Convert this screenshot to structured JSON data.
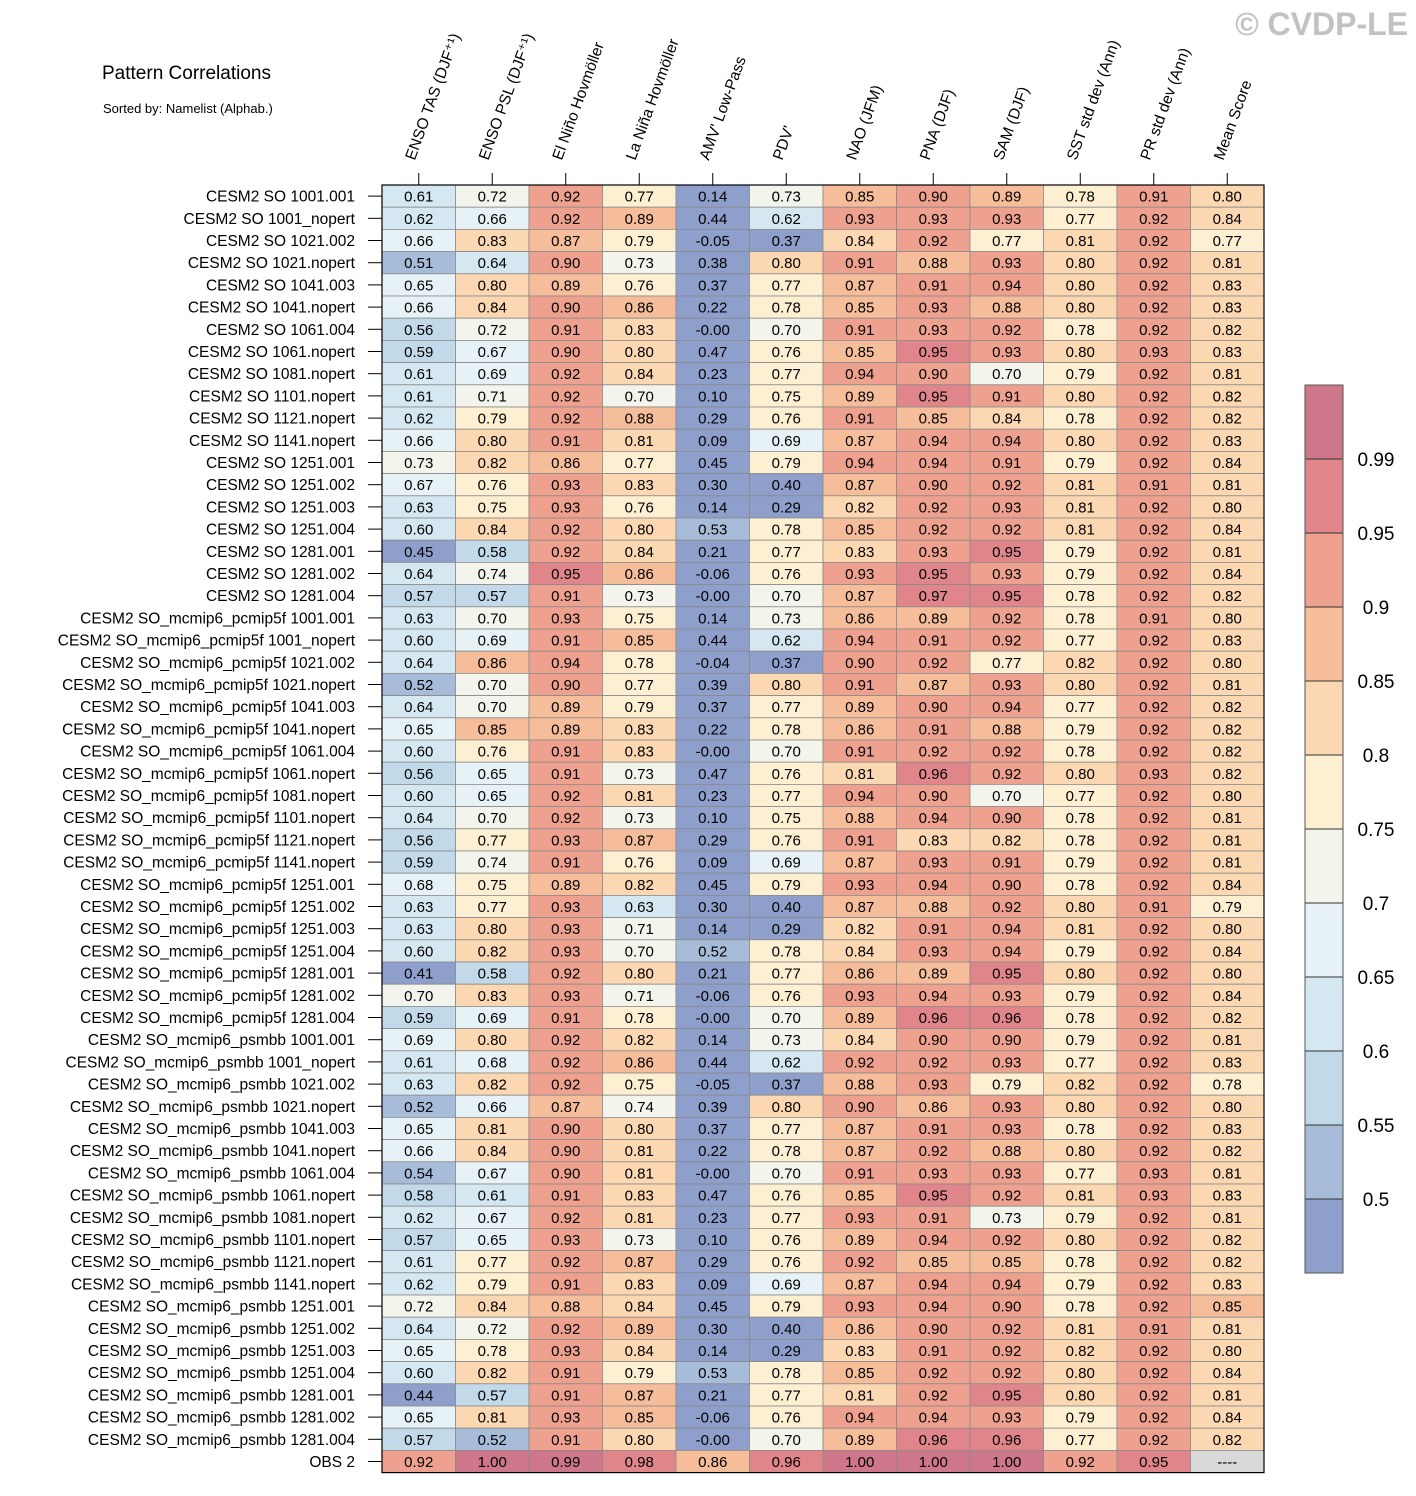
{
  "watermark": "© CVDP-LE",
  "chart_data": {
    "type": "heatmap",
    "title": "Pattern Correlations",
    "subtitle": "Sorted by: Namelist (Alphab.)",
    "columns": [
      "ENSO TAS (DJF⁺¹)",
      "ENSO PSL (DJF⁺¹)",
      "El Niño Hovmöller",
      "La Niña Hovmöller",
      "AMV' Low-Pass",
      "PDV'",
      "NAO (JFM)",
      "PNA (DJF)",
      "SAM (DJF)",
      "SST std dev (Ann)",
      "PR std dev (Ann)",
      "Mean Score"
    ],
    "rows": [
      "CESM2 SO 1001.001",
      "CESM2 SO 1001_nopert",
      "CESM2 SO 1021.002",
      "CESM2 SO 1021.nopert",
      "CESM2 SO 1041.003",
      "CESM2 SO 1041.nopert",
      "CESM2 SO 1061.004",
      "CESM2 SO 1061.nopert",
      "CESM2 SO 1081.nopert",
      "CESM2 SO 1101.nopert",
      "CESM2 SO 1121.nopert",
      "CESM2 SO 1141.nopert",
      "CESM2 SO 1251.001",
      "CESM2 SO 1251.002",
      "CESM2 SO 1251.003",
      "CESM2 SO 1251.004",
      "CESM2 SO 1281.001",
      "CESM2 SO 1281.002",
      "CESM2 SO 1281.004",
      "CESM2 SO_mcmip6_pcmip5f 1001.001",
      "CESM2 SO_mcmip6_pcmip5f 1001_nopert",
      "CESM2 SO_mcmip6_pcmip5f 1021.002",
      "CESM2 SO_mcmip6_pcmip5f 1021.nopert",
      "CESM2 SO_mcmip6_pcmip5f 1041.003",
      "CESM2 SO_mcmip6_pcmip5f 1041.nopert",
      "CESM2 SO_mcmip6_pcmip5f 1061.004",
      "CESM2 SO_mcmip6_pcmip5f 1061.nopert",
      "CESM2 SO_mcmip6_pcmip5f 1081.nopert",
      "CESM2 SO_mcmip6_pcmip5f 1101.nopert",
      "CESM2 SO_mcmip6_pcmip5f 1121.nopert",
      "CESM2 SO_mcmip6_pcmip5f 1141.nopert",
      "CESM2 SO_mcmip6_pcmip5f 1251.001",
      "CESM2 SO_mcmip6_pcmip5f 1251.002",
      "CESM2 SO_mcmip6_pcmip5f 1251.003",
      "CESM2 SO_mcmip6_pcmip5f 1251.004",
      "CESM2 SO_mcmip6_pcmip5f 1281.001",
      "CESM2 SO_mcmip6_pcmip5f 1281.002",
      "CESM2 SO_mcmip6_pcmip5f 1281.004",
      "CESM2 SO_mcmip6_psmbb 1001.001",
      "CESM2 SO_mcmip6_psmbb 1001_nopert",
      "CESM2 SO_mcmip6_psmbb 1021.002",
      "CESM2 SO_mcmip6_psmbb 1021.nopert",
      "CESM2 SO_mcmip6_psmbb 1041.003",
      "CESM2 SO_mcmip6_psmbb 1041.nopert",
      "CESM2 SO_mcmip6_psmbb 1061.004",
      "CESM2 SO_mcmip6_psmbb 1061.nopert",
      "CESM2 SO_mcmip6_psmbb 1081.nopert",
      "CESM2 SO_mcmip6_psmbb 1101.nopert",
      "CESM2 SO_mcmip6_psmbb 1121.nopert",
      "CESM2 SO_mcmip6_psmbb 1141.nopert",
      "CESM2 SO_mcmip6_psmbb 1251.001",
      "CESM2 SO_mcmip6_psmbb 1251.002",
      "CESM2 SO_mcmip6_psmbb 1251.003",
      "CESM2 SO_mcmip6_psmbb 1251.004",
      "CESM2 SO_mcmip6_psmbb 1281.001",
      "CESM2 SO_mcmip6_psmbb 1281.002",
      "CESM2 SO_mcmip6_psmbb 1281.004",
      "OBS 2"
    ],
    "values": [
      [
        "0.61",
        "0.72",
        "0.92",
        "0.77",
        "0.14",
        "0.73",
        "0.85",
        "0.90",
        "0.89",
        "0.78",
        "0.91",
        "0.80"
      ],
      [
        "0.62",
        "0.66",
        "0.92",
        "0.89",
        "0.44",
        "0.62",
        "0.93",
        "0.93",
        "0.93",
        "0.77",
        "0.92",
        "0.84"
      ],
      [
        "0.66",
        "0.83",
        "0.87",
        "0.79",
        "-0.05",
        "0.37",
        "0.84",
        "0.92",
        "0.77",
        "0.81",
        "0.92",
        "0.77"
      ],
      [
        "0.51",
        "0.64",
        "0.90",
        "0.73",
        "0.38",
        "0.80",
        "0.91",
        "0.88",
        "0.93",
        "0.80",
        "0.92",
        "0.81"
      ],
      [
        "0.65",
        "0.80",
        "0.89",
        "0.76",
        "0.37",
        "0.77",
        "0.87",
        "0.91",
        "0.94",
        "0.80",
        "0.92",
        "0.83"
      ],
      [
        "0.66",
        "0.84",
        "0.90",
        "0.86",
        "0.22",
        "0.78",
        "0.85",
        "0.93",
        "0.88",
        "0.80",
        "0.92",
        "0.83"
      ],
      [
        "0.56",
        "0.72",
        "0.91",
        "0.83",
        "-0.00",
        "0.70",
        "0.91",
        "0.93",
        "0.92",
        "0.78",
        "0.92",
        "0.82"
      ],
      [
        "0.59",
        "0.67",
        "0.90",
        "0.80",
        "0.47",
        "0.76",
        "0.85",
        "0.95",
        "0.93",
        "0.80",
        "0.93",
        "0.83"
      ],
      [
        "0.61",
        "0.69",
        "0.92",
        "0.84",
        "0.23",
        "0.77",
        "0.94",
        "0.90",
        "0.70",
        "0.79",
        "0.92",
        "0.81"
      ],
      [
        "0.61",
        "0.71",
        "0.92",
        "0.70",
        "0.10",
        "0.75",
        "0.89",
        "0.95",
        "0.91",
        "0.80",
        "0.92",
        "0.82"
      ],
      [
        "0.62",
        "0.79",
        "0.92",
        "0.88",
        "0.29",
        "0.76",
        "0.91",
        "0.85",
        "0.84",
        "0.78",
        "0.92",
        "0.82"
      ],
      [
        "0.66",
        "0.80",
        "0.91",
        "0.81",
        "0.09",
        "0.69",
        "0.87",
        "0.94",
        "0.94",
        "0.80",
        "0.92",
        "0.83"
      ],
      [
        "0.73",
        "0.82",
        "0.86",
        "0.77",
        "0.45",
        "0.79",
        "0.94",
        "0.94",
        "0.91",
        "0.79",
        "0.92",
        "0.84"
      ],
      [
        "0.67",
        "0.76",
        "0.93",
        "0.83",
        "0.30",
        "0.40",
        "0.87",
        "0.90",
        "0.92",
        "0.81",
        "0.91",
        "0.81"
      ],
      [
        "0.63",
        "0.75",
        "0.93",
        "0.76",
        "0.14",
        "0.29",
        "0.82",
        "0.92",
        "0.93",
        "0.81",
        "0.92",
        "0.80"
      ],
      [
        "0.60",
        "0.84",
        "0.92",
        "0.80",
        "0.53",
        "0.78",
        "0.85",
        "0.92",
        "0.92",
        "0.81",
        "0.92",
        "0.84"
      ],
      [
        "0.45",
        "0.58",
        "0.92",
        "0.84",
        "0.21",
        "0.77",
        "0.83",
        "0.93",
        "0.95",
        "0.79",
        "0.92",
        "0.81"
      ],
      [
        "0.64",
        "0.74",
        "0.95",
        "0.86",
        "-0.06",
        "0.76",
        "0.93",
        "0.95",
        "0.93",
        "0.79",
        "0.92",
        "0.84"
      ],
      [
        "0.57",
        "0.57",
        "0.91",
        "0.73",
        "-0.00",
        "0.70",
        "0.87",
        "0.97",
        "0.95",
        "0.78",
        "0.92",
        "0.82"
      ],
      [
        "0.63",
        "0.70",
        "0.93",
        "0.75",
        "0.14",
        "0.73",
        "0.86",
        "0.89",
        "0.92",
        "0.78",
        "0.91",
        "0.80"
      ],
      [
        "0.60",
        "0.69",
        "0.91",
        "0.85",
        "0.44",
        "0.62",
        "0.94",
        "0.91",
        "0.92",
        "0.77",
        "0.92",
        "0.83"
      ],
      [
        "0.64",
        "0.86",
        "0.94",
        "0.78",
        "-0.04",
        "0.37",
        "0.90",
        "0.92",
        "0.77",
        "0.82",
        "0.92",
        "0.80"
      ],
      [
        "0.52",
        "0.70",
        "0.90",
        "0.77",
        "0.39",
        "0.80",
        "0.91",
        "0.87",
        "0.93",
        "0.80",
        "0.92",
        "0.81"
      ],
      [
        "0.64",
        "0.70",
        "0.89",
        "0.79",
        "0.37",
        "0.77",
        "0.89",
        "0.90",
        "0.94",
        "0.77",
        "0.92",
        "0.82"
      ],
      [
        "0.65",
        "0.85",
        "0.89",
        "0.83",
        "0.22",
        "0.78",
        "0.86",
        "0.91",
        "0.88",
        "0.79",
        "0.92",
        "0.82"
      ],
      [
        "0.60",
        "0.76",
        "0.91",
        "0.83",
        "-0.00",
        "0.70",
        "0.91",
        "0.92",
        "0.92",
        "0.78",
        "0.92",
        "0.82"
      ],
      [
        "0.56",
        "0.65",
        "0.91",
        "0.73",
        "0.47",
        "0.76",
        "0.81",
        "0.96",
        "0.92",
        "0.80",
        "0.93",
        "0.82"
      ],
      [
        "0.60",
        "0.65",
        "0.92",
        "0.81",
        "0.23",
        "0.77",
        "0.94",
        "0.90",
        "0.70",
        "0.77",
        "0.92",
        "0.80"
      ],
      [
        "0.64",
        "0.70",
        "0.92",
        "0.73",
        "0.10",
        "0.75",
        "0.88",
        "0.94",
        "0.90",
        "0.78",
        "0.92",
        "0.81"
      ],
      [
        "0.56",
        "0.77",
        "0.93",
        "0.87",
        "0.29",
        "0.76",
        "0.91",
        "0.83",
        "0.82",
        "0.78",
        "0.92",
        "0.81"
      ],
      [
        "0.59",
        "0.74",
        "0.91",
        "0.76",
        "0.09",
        "0.69",
        "0.87",
        "0.93",
        "0.91",
        "0.79",
        "0.92",
        "0.81"
      ],
      [
        "0.68",
        "0.75",
        "0.89",
        "0.82",
        "0.45",
        "0.79",
        "0.93",
        "0.94",
        "0.90",
        "0.78",
        "0.92",
        "0.84"
      ],
      [
        "0.63",
        "0.77",
        "0.93",
        "0.63",
        "0.30",
        "0.40",
        "0.87",
        "0.88",
        "0.92",
        "0.80",
        "0.91",
        "0.79"
      ],
      [
        "0.63",
        "0.80",
        "0.93",
        "0.71",
        "0.14",
        "0.29",
        "0.82",
        "0.91",
        "0.94",
        "0.81",
        "0.92",
        "0.80"
      ],
      [
        "0.60",
        "0.82",
        "0.93",
        "0.70",
        "0.52",
        "0.78",
        "0.84",
        "0.93",
        "0.94",
        "0.79",
        "0.92",
        "0.84"
      ],
      [
        "0.41",
        "0.58",
        "0.92",
        "0.80",
        "0.21",
        "0.77",
        "0.86",
        "0.89",
        "0.95",
        "0.80",
        "0.92",
        "0.80"
      ],
      [
        "0.70",
        "0.83",
        "0.93",
        "0.71",
        "-0.06",
        "0.76",
        "0.93",
        "0.94",
        "0.93",
        "0.79",
        "0.92",
        "0.84"
      ],
      [
        "0.59",
        "0.69",
        "0.91",
        "0.78",
        "-0.00",
        "0.70",
        "0.89",
        "0.96",
        "0.96",
        "0.78",
        "0.92",
        "0.82"
      ],
      [
        "0.69",
        "0.80",
        "0.92",
        "0.82",
        "0.14",
        "0.73",
        "0.84",
        "0.90",
        "0.90",
        "0.79",
        "0.92",
        "0.81"
      ],
      [
        "0.61",
        "0.68",
        "0.92",
        "0.86",
        "0.44",
        "0.62",
        "0.92",
        "0.92",
        "0.93",
        "0.77",
        "0.92",
        "0.83"
      ],
      [
        "0.63",
        "0.82",
        "0.92",
        "0.75",
        "-0.05",
        "0.37",
        "0.88",
        "0.93",
        "0.79",
        "0.82",
        "0.92",
        "0.78"
      ],
      [
        "0.52",
        "0.66",
        "0.87",
        "0.74",
        "0.39",
        "0.80",
        "0.90",
        "0.86",
        "0.93",
        "0.80",
        "0.92",
        "0.80"
      ],
      [
        "0.65",
        "0.81",
        "0.90",
        "0.80",
        "0.37",
        "0.77",
        "0.87",
        "0.91",
        "0.93",
        "0.78",
        "0.92",
        "0.83"
      ],
      [
        "0.66",
        "0.84",
        "0.90",
        "0.81",
        "0.22",
        "0.78",
        "0.87",
        "0.92",
        "0.88",
        "0.80",
        "0.92",
        "0.82"
      ],
      [
        "0.54",
        "0.67",
        "0.90",
        "0.81",
        "-0.00",
        "0.70",
        "0.91",
        "0.93",
        "0.93",
        "0.77",
        "0.93",
        "0.81"
      ],
      [
        "0.58",
        "0.61",
        "0.91",
        "0.83",
        "0.47",
        "0.76",
        "0.85",
        "0.95",
        "0.92",
        "0.81",
        "0.93",
        "0.83"
      ],
      [
        "0.62",
        "0.67",
        "0.92",
        "0.81",
        "0.23",
        "0.77",
        "0.93",
        "0.91",
        "0.73",
        "0.79",
        "0.92",
        "0.81"
      ],
      [
        "0.57",
        "0.65",
        "0.93",
        "0.73",
        "0.10",
        "0.76",
        "0.89",
        "0.94",
        "0.92",
        "0.80",
        "0.92",
        "0.82"
      ],
      [
        "0.61",
        "0.77",
        "0.92",
        "0.87",
        "0.29",
        "0.76",
        "0.92",
        "0.85",
        "0.85",
        "0.78",
        "0.92",
        "0.82"
      ],
      [
        "0.62",
        "0.79",
        "0.91",
        "0.83",
        "0.09",
        "0.69",
        "0.87",
        "0.94",
        "0.94",
        "0.79",
        "0.92",
        "0.83"
      ],
      [
        "0.72",
        "0.84",
        "0.88",
        "0.84",
        "0.45",
        "0.79",
        "0.93",
        "0.94",
        "0.90",
        "0.78",
        "0.92",
        "0.85"
      ],
      [
        "0.64",
        "0.72",
        "0.92",
        "0.89",
        "0.30",
        "0.40",
        "0.86",
        "0.90",
        "0.92",
        "0.81",
        "0.91",
        "0.81"
      ],
      [
        "0.65",
        "0.78",
        "0.93",
        "0.84",
        "0.14",
        "0.29",
        "0.83",
        "0.91",
        "0.92",
        "0.82",
        "0.92",
        "0.80"
      ],
      [
        "0.60",
        "0.82",
        "0.91",
        "0.79",
        "0.53",
        "0.78",
        "0.85",
        "0.92",
        "0.92",
        "0.80",
        "0.92",
        "0.84"
      ],
      [
        "0.44",
        "0.57",
        "0.91",
        "0.87",
        "0.21",
        "0.77",
        "0.81",
        "0.92",
        "0.95",
        "0.80",
        "0.92",
        "0.81"
      ],
      [
        "0.65",
        "0.81",
        "0.93",
        "0.85",
        "-0.06",
        "0.76",
        "0.94",
        "0.94",
        "0.93",
        "0.79",
        "0.92",
        "0.84"
      ],
      [
        "0.57",
        "0.52",
        "0.91",
        "0.80",
        "-0.00",
        "0.70",
        "0.89",
        "0.96",
        "0.96",
        "0.77",
        "0.92",
        "0.82"
      ],
      [
        "0.92",
        "1.00",
        "0.99",
        "0.98",
        "0.86",
        "0.96",
        "1.00",
        "1.00",
        "1.00",
        "0.92",
        "0.95",
        "----"
      ]
    ],
    "missing_color": "#d9d9d9",
    "colorbar": {
      "boundaries": [
        0.5,
        0.55,
        0.6,
        0.65,
        0.7,
        0.75,
        0.8,
        0.85,
        0.9,
        0.95,
        0.99
      ],
      "colors": [
        "#8d9fca",
        "#a7bcd9",
        "#c1d9e9",
        "#d5e8f1",
        "#e6f2f6",
        "#f3f4ec",
        "#fdf0d2",
        "#fbd7b2",
        "#f6bd9b",
        "#eda18e",
        "#e0868b",
        "#cf778a"
      ]
    }
  }
}
